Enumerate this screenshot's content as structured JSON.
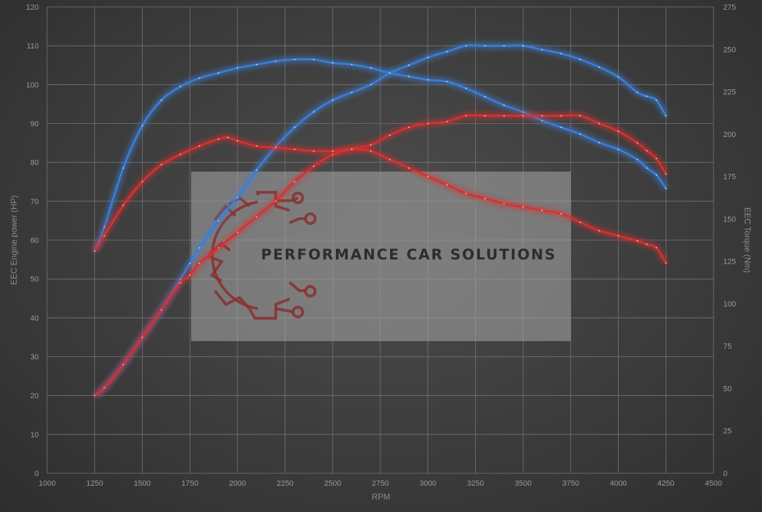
{
  "chart_data": {
    "type": "line",
    "xlabel": "RPM",
    "ylabel_left": "EEC Engine power (HP)",
    "ylabel_right": "EEC Torque (Nm)",
    "xlim": [
      1000,
      4500
    ],
    "xticks": [
      1000,
      1250,
      1500,
      1750,
      2000,
      2250,
      2500,
      2750,
      3000,
      3250,
      3500,
      3750,
      4000,
      4250,
      4500
    ],
    "ylim_left": [
      0,
      120
    ],
    "yticks_left": [
      0,
      10,
      20,
      30,
      40,
      50,
      60,
      70,
      80,
      90,
      100,
      110,
      120
    ],
    "ylim_right": [
      0,
      275
    ],
    "yticks_right": [
      0,
      25,
      50,
      75,
      100,
      125,
      150,
      175,
      200,
      225,
      250,
      275
    ],
    "grid": true,
    "series": [
      {
        "axis": "left",
        "color": "#3a7fd8",
        "x": [
          1250,
          1300,
          1400,
          1500,
          1600,
          1700,
          1750,
          1800,
          1900,
          2000,
          2100,
          2200,
          2300,
          2400,
          2500,
          2600,
          2700,
          2800,
          2900,
          3000,
          3100,
          3200,
          3300,
          3400,
          3500,
          3600,
          3700,
          3800,
          3900,
          4000,
          4100,
          4150,
          4200,
          4250
        ],
        "y": [
          20,
          22,
          28,
          35,
          42,
          50,
          54,
          58,
          65,
          71,
          78,
          84,
          89,
          93,
          96,
          98,
          100,
          103,
          105,
          107,
          108.5,
          110,
          110,
          110,
          110,
          109,
          108,
          106.5,
          104.5,
          102,
          98,
          97,
          96,
          92
        ]
      },
      {
        "axis": "right",
        "color": "#3a7fd8",
        "x": [
          1250,
          1300,
          1400,
          1500,
          1600,
          1700,
          1800,
          1900,
          2000,
          2100,
          2200,
          2300,
          2400,
          2500,
          2600,
          2700,
          2800,
          2900,
          3000,
          3100,
          3200,
          3300,
          3400,
          3500,
          3600,
          3700,
          3800,
          3900,
          4000,
          4100,
          4150,
          4200,
          4250
        ],
        "y": [
          131,
          145,
          180,
          205,
          220,
          228,
          233,
          236,
          239,
          241,
          243,
          244,
          244,
          242,
          241,
          239,
          236,
          234,
          232,
          231,
          227,
          222,
          217,
          213,
          208,
          204,
          200,
          195,
          191,
          185,
          180,
          176,
          168
        ]
      },
      {
        "axis": "left",
        "color": "#d93030",
        "x": [
          1250,
          1300,
          1400,
          1500,
          1600,
          1700,
          1750,
          1800,
          1900,
          2000,
          2100,
          2200,
          2300,
          2400,
          2500,
          2600,
          2700,
          2800,
          2900,
          3000,
          3100,
          3200,
          3300,
          3400,
          3500,
          3600,
          3700,
          3800,
          3900,
          4000,
          4100,
          4150,
          4200,
          4250
        ],
        "y": [
          20,
          22,
          28,
          35,
          42,
          49,
          51,
          54,
          58,
          62,
          66,
          70,
          75,
          79,
          82,
          83.5,
          84.5,
          87,
          89,
          90,
          90.5,
          92,
          92,
          92,
          92,
          92,
          92,
          92,
          90,
          88,
          85,
          83,
          81,
          77
        ]
      },
      {
        "axis": "right",
        "color": "#d93030",
        "x": [
          1250,
          1300,
          1400,
          1500,
          1600,
          1700,
          1800,
          1900,
          1950,
          2000,
          2100,
          2200,
          2300,
          2400,
          2500,
          2600,
          2700,
          2800,
          2900,
          3000,
          3100,
          3200,
          3300,
          3400,
          3500,
          3600,
          3700,
          3800,
          3900,
          4000,
          4100,
          4150,
          4200,
          4250
        ],
        "y": [
          131,
          140,
          158,
          172,
          182,
          188,
          193,
          197,
          198,
          196,
          193,
          192,
          191,
          190,
          190,
          191,
          190,
          185,
          180,
          175,
          170,
          165,
          162,
          159,
          157,
          155,
          153,
          148,
          143,
          140,
          137,
          135,
          133,
          124
        ]
      }
    ]
  },
  "watermark": {
    "text": "PERFORMANCE CAR SOLUTIONS",
    "logo": "gear-circuit-logo",
    "logo_color": "#8a3030",
    "panel_color": "#9a9a9a"
  }
}
